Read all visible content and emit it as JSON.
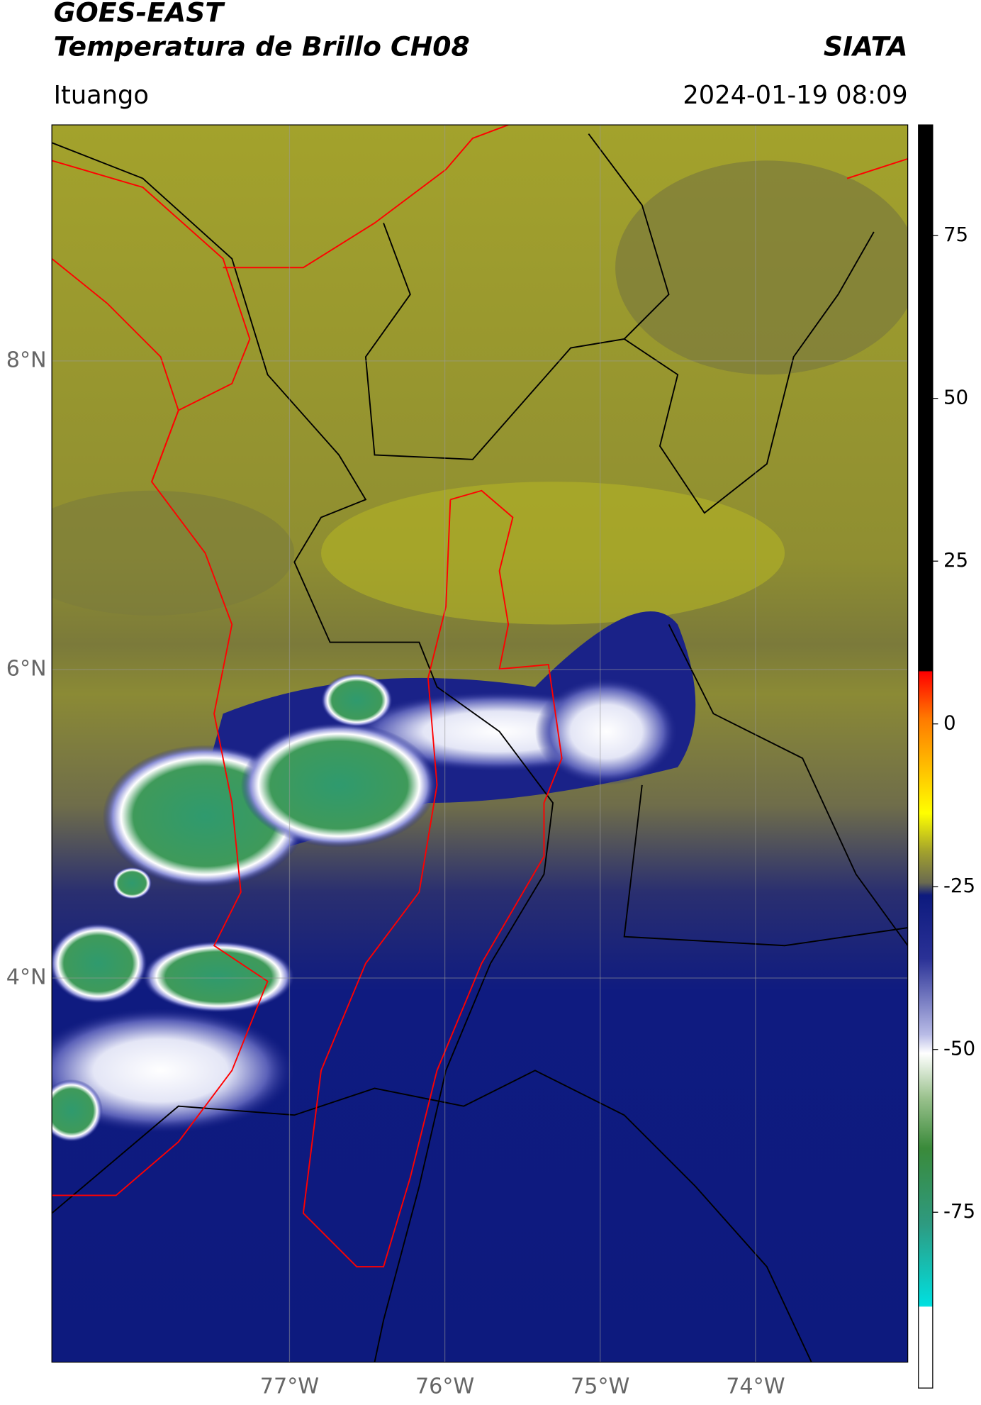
{
  "header": {
    "satellite": "GOES-EAST",
    "product": "Temperatura de Brillo CH08",
    "agency": "SIATA",
    "region": "Ituango",
    "datetime": "2024-01-19 08:09"
  },
  "map": {
    "xlim": [
      -78.53,
      -73.02
    ],
    "ylim": [
      1.51,
      9.53
    ],
    "xticks": [
      {
        "value": -77,
        "label": "77°W"
      },
      {
        "value": -76,
        "label": "76°W"
      },
      {
        "value": -75,
        "label": "75°W"
      },
      {
        "value": -74,
        "label": "74°W"
      }
    ],
    "yticks": [
      {
        "value": 8,
        "label": "8°N"
      },
      {
        "value": 6,
        "label": "6°N"
      },
      {
        "value": 4,
        "label": "4°N"
      }
    ],
    "grid": true
  },
  "colorbar": {
    "lim": [
      -102,
      92
    ],
    "ticks": [
      75,
      50,
      25,
      0,
      -25,
      -50,
      -75
    ]
  }
}
